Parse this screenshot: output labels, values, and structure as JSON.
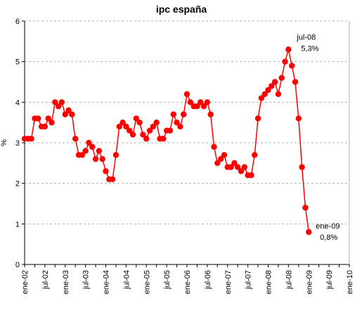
{
  "chart_data": {
    "type": "line",
    "title": "ipc españa",
    "xlabel": "",
    "ylabel": "%",
    "ylim": [
      0,
      6
    ],
    "yticks": [
      "0",
      "1",
      "2",
      "3",
      "4",
      "5",
      "6"
    ],
    "xticks": [
      "ene-02",
      "jul-02",
      "ene-03",
      "jul-03",
      "ene-04",
      "jul-04",
      "ene-05",
      "jul-05",
      "ene-06",
      "jul-06",
      "ene-07",
      "jul-07",
      "ene-08",
      "jul-08",
      "ene-09",
      "jul-09",
      "ene-10"
    ],
    "x_start": "ene-02",
    "x_end": "ene-10",
    "grid": "horizontal dashed",
    "legend": "none",
    "series": [
      {
        "color": "#ff0000",
        "marker": "circle",
        "values": [
          3.1,
          3.1,
          3.1,
          3.6,
          3.6,
          3.4,
          3.4,
          3.6,
          3.5,
          4.0,
          3.9,
          4.0,
          3.7,
          3.8,
          3.7,
          3.1,
          2.7,
          2.7,
          2.8,
          3.0,
          2.9,
          2.6,
          2.8,
          2.6,
          2.3,
          2.1,
          2.1,
          2.7,
          3.4,
          3.5,
          3.4,
          3.3,
          3.2,
          3.6,
          3.5,
          3.2,
          3.1,
          3.3,
          3.4,
          3.5,
          3.1,
          3.1,
          3.3,
          3.3,
          3.7,
          3.5,
          3.4,
          3.7,
          4.2,
          4.0,
          3.9,
          3.9,
          4.0,
          3.9,
          4.0,
          3.7,
          2.9,
          2.5,
          2.6,
          2.7,
          2.4,
          2.4,
          2.5,
          2.4,
          2.3,
          2.4,
          2.2,
          2.2,
          2.7,
          3.6,
          4.1,
          4.2,
          4.3,
          4.4,
          4.5,
          4.2,
          4.6,
          5.0,
          5.3,
          4.9,
          4.5,
          3.6,
          2.4,
          1.4,
          0.8
        ]
      }
    ],
    "annotations": [
      {
        "text_line1": "jul-08",
        "text_line2": "5,3%",
        "at_index": 78,
        "value": 5.3
      },
      {
        "text_line1": "ene-09",
        "text_line2": "0,8%",
        "at_index": 84,
        "value": 0.8
      }
    ]
  }
}
